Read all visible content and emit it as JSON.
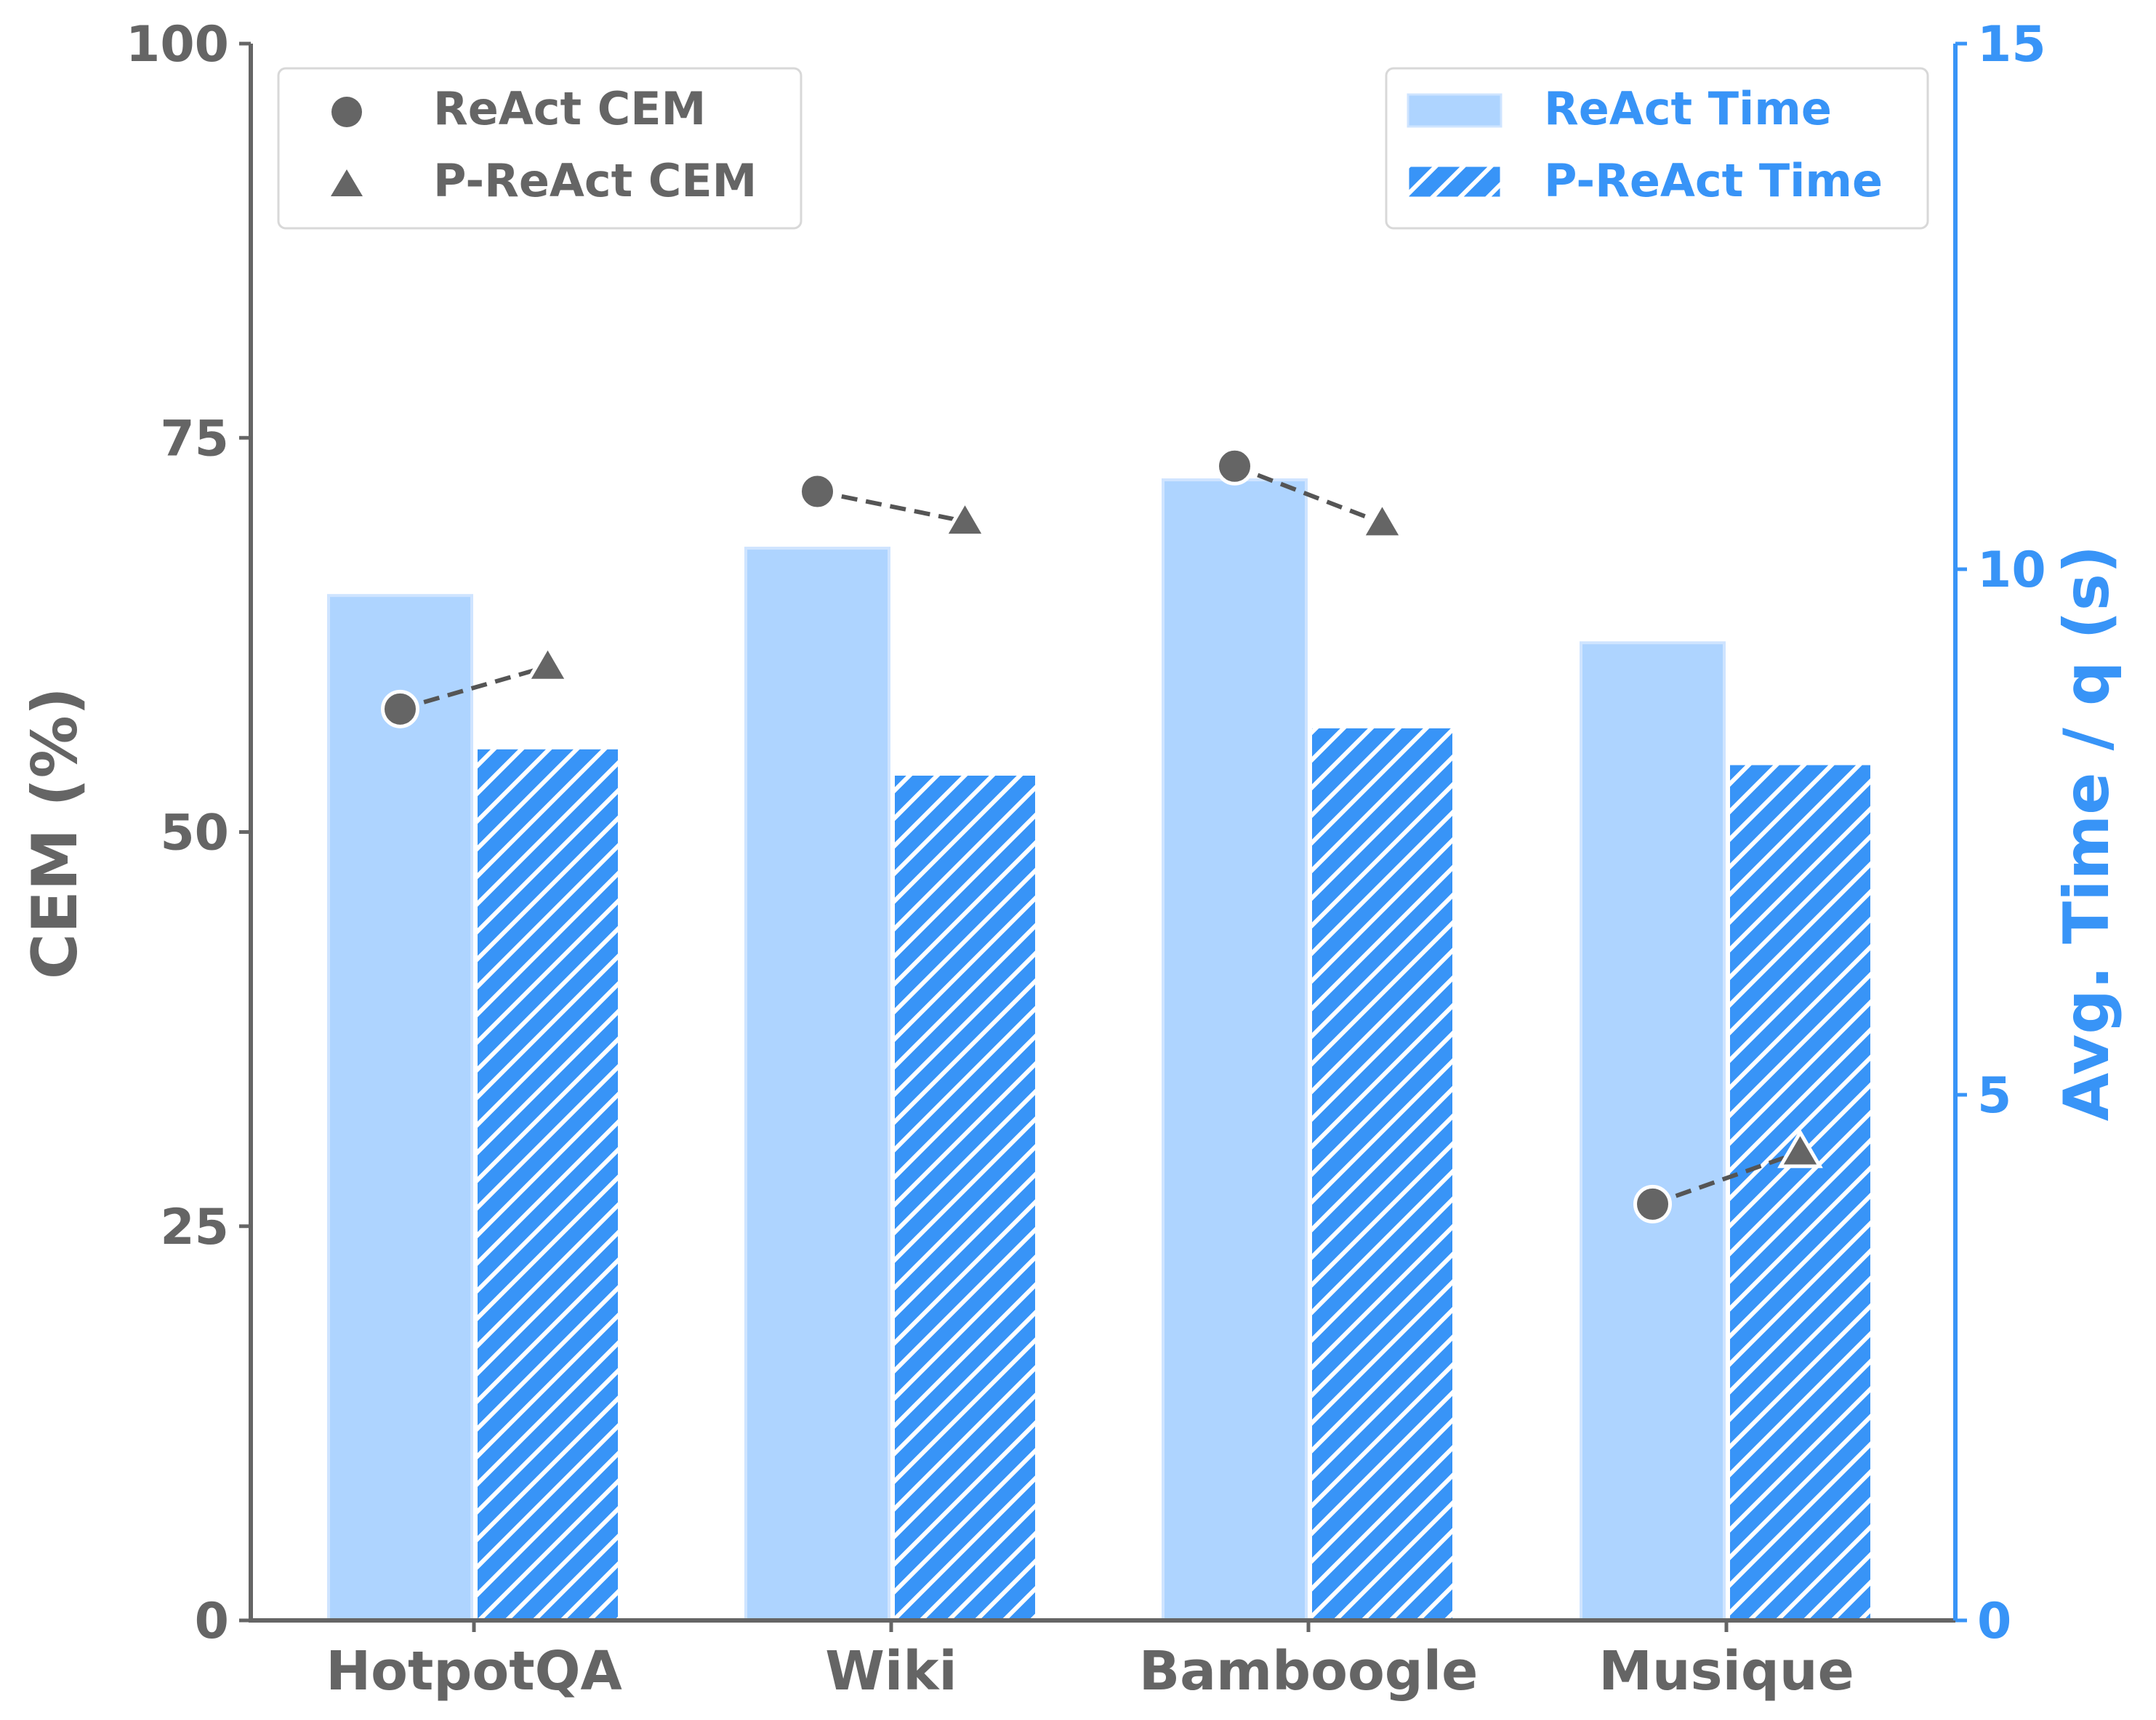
{
  "chart_data": {
    "type": "bar",
    "categories": [
      "HotpotQA",
      "Wiki",
      "Bamboogle",
      "Musique"
    ],
    "bar_series": [
      {
        "name": "ReAct Time",
        "values": [
          9.75,
          10.2,
          10.85,
          9.3
        ],
        "hatched": false
      },
      {
        "name": "P-ReAct Time",
        "values": [
          8.3,
          8.05,
          8.5,
          8.15
        ],
        "hatched": true
      }
    ],
    "point_series": [
      {
        "name": "ReAct CEM",
        "marker": "circle",
        "values": [
          57.8,
          71.6,
          73.2,
          26.4
        ]
      },
      {
        "name": "P-ReAct CEM",
        "marker": "triangle",
        "values": [
          60.5,
          69.7,
          69.6,
          29.7
        ]
      }
    ],
    "left_axis": {
      "label": "CEM (%)",
      "ylim": [
        0,
        100
      ],
      "ticks": [
        "0",
        "25",
        "50",
        "75",
        "100"
      ]
    },
    "right_axis": {
      "label": "Avg. Time / q (s)",
      "ylim": [
        0,
        15
      ],
      "ticks": [
        "0",
        "5",
        "10",
        "15"
      ]
    },
    "legend_left": {
      "position": "top-left",
      "items": [
        "ReAct CEM",
        "P-ReAct CEM"
      ]
    },
    "legend_right": {
      "position": "top-right",
      "items": [
        "ReAct Time",
        "P-ReAct Time"
      ]
    },
    "colors": {
      "react_bar": "#aed4ff",
      "react_bar_edge": "#cfe4ff",
      "preact_bar": "#3894f7",
      "marker": "#656565",
      "marker_edge": "#ffffff",
      "left_axis": "#656565",
      "right_axis": "#3894f7",
      "connector": "#555555"
    }
  }
}
